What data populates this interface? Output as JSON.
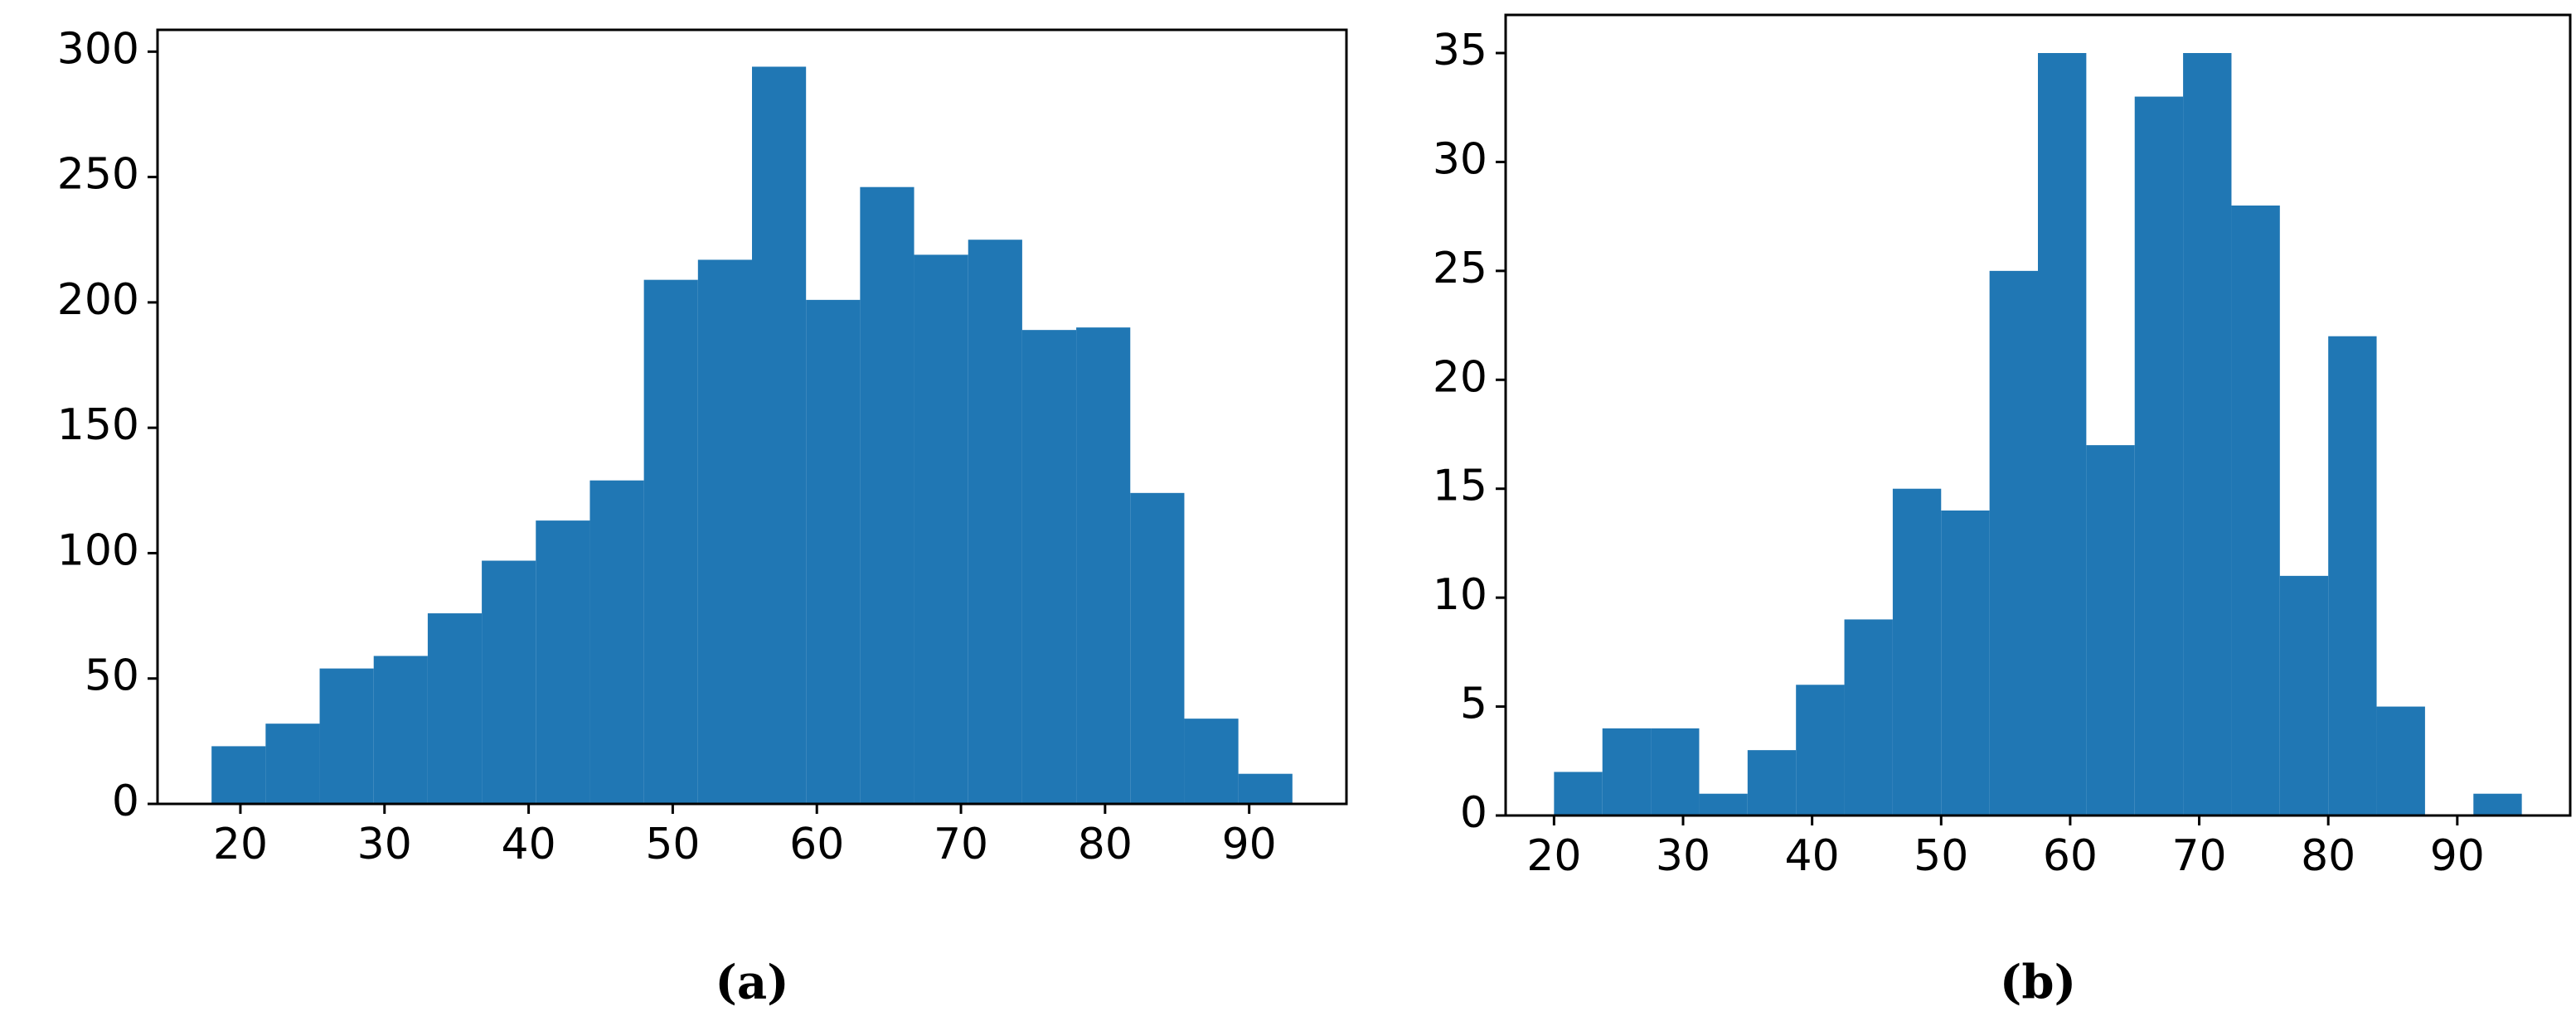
{
  "chart_data": [
    {
      "type": "histogram",
      "caption": "(a)",
      "color": "#2077b4",
      "bins": [
        18,
        21.75,
        25.5,
        29.25,
        33,
        36.75,
        40.5,
        44.25,
        48,
        51.75,
        55.5,
        59.25,
        63,
        66.75,
        70.5,
        74.25,
        78,
        81.75,
        85.5,
        89.25,
        93
      ],
      "values": [
        23,
        32,
        54,
        59,
        76,
        97,
        113,
        129,
        209,
        217,
        294,
        201,
        246,
        219,
        225,
        189,
        190,
        124,
        34,
        12
      ],
      "xlim": [
        14.25,
        96.75
      ],
      "xticks": [
        20,
        30,
        40,
        50,
        60,
        70,
        80,
        90
      ],
      "ylim": [
        0,
        308.7
      ],
      "yticks": [
        0,
        50,
        100,
        150,
        200,
        250,
        300
      ]
    },
    {
      "type": "histogram",
      "caption": "(b)",
      "color": "#2077b4",
      "bins": [
        20,
        23.75,
        27.5,
        31.25,
        35,
        38.75,
        42.5,
        46.25,
        50,
        53.75,
        57.5,
        61.25,
        65,
        68.75,
        72.5,
        76.25,
        80,
        83.75,
        87.5,
        91.25,
        95
      ],
      "values": [
        2,
        4,
        4,
        1,
        3,
        6,
        9,
        15,
        14,
        25,
        35,
        17,
        33,
        35,
        28,
        11,
        22,
        5,
        0,
        1
      ],
      "xlim": [
        16.25,
        98.75
      ],
      "xticks": [
        20,
        30,
        40,
        50,
        60,
        70,
        80,
        90
      ],
      "ylim": [
        0,
        36.75
      ],
      "yticks": [
        0,
        5,
        10,
        15,
        20,
        25,
        30,
        35
      ]
    }
  ]
}
